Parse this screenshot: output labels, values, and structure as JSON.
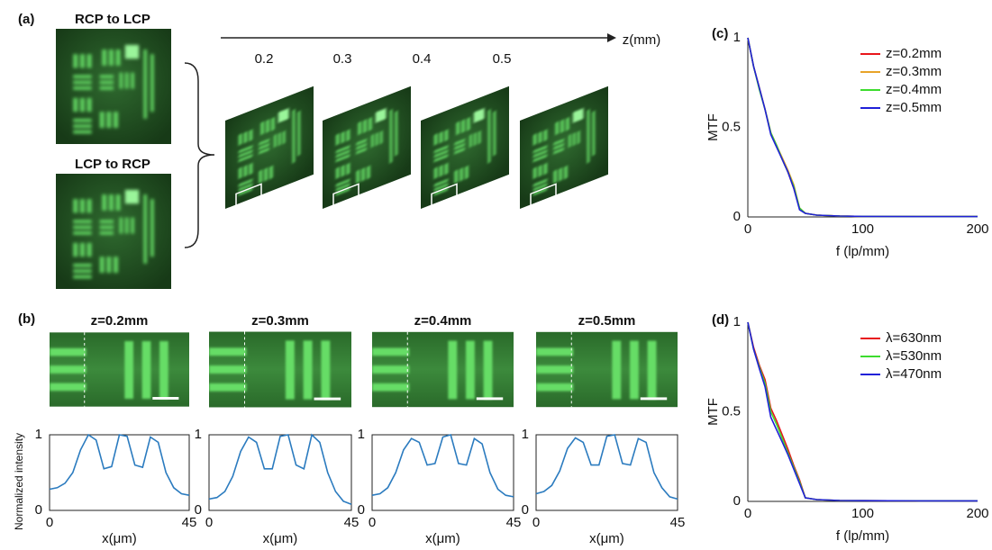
{
  "panel_labels": [
    "(a)",
    "(b)",
    "(c)",
    "(d)"
  ],
  "panel_a": {
    "input_labels": [
      "RCP to LCP",
      "LCP to RCP"
    ],
    "z_axis_label": "z(mm)",
    "z_positions": [
      0.2,
      0.3,
      0.4,
      0.5
    ]
  },
  "chart_data": [
    {
      "type": "line",
      "title": "z=0.2mm",
      "ylabel": "Normalized intensity",
      "xlabel": "x(μm)",
      "x": [
        0,
        2.5,
        5,
        7.5,
        10,
        12.5,
        15,
        17.5,
        20,
        22.5,
        25,
        27.5,
        30,
        32.5,
        35,
        37.5,
        40,
        42.5,
        45
      ],
      "values": [
        0.28,
        0.3,
        0.36,
        0.5,
        0.8,
        1.0,
        0.93,
        0.55,
        0.58,
        1.0,
        0.98,
        0.6,
        0.57,
        0.97,
        0.9,
        0.5,
        0.3,
        0.22,
        0.2
      ],
      "color": "#2b7bbf",
      "xlim": [
        0,
        45
      ],
      "ylim": [
        0,
        1
      ],
      "xticks": [
        0,
        45
      ],
      "yticks": [
        0,
        1
      ]
    },
    {
      "type": "line",
      "title": "z=0.3mm",
      "xlabel": "x(μm)",
      "x": [
        0,
        2.5,
        5,
        7.5,
        10,
        12.5,
        15,
        17.5,
        20,
        22.5,
        25,
        27.5,
        30,
        32.5,
        35,
        37.5,
        40,
        42.5,
        45
      ],
      "values": [
        0.15,
        0.17,
        0.25,
        0.45,
        0.78,
        0.97,
        0.9,
        0.55,
        0.55,
        0.98,
        1.0,
        0.6,
        0.55,
        1.0,
        0.9,
        0.5,
        0.25,
        0.12,
        0.08
      ],
      "color": "#2b7bbf",
      "xlim": [
        0,
        45
      ],
      "ylim": [
        0,
        1
      ],
      "xticks": [
        0,
        45
      ],
      "yticks": [
        0,
        1
      ]
    },
    {
      "type": "line",
      "title": "z=0.4mm",
      "xlabel": "x(μm)",
      "x": [
        0,
        2.5,
        5,
        7.5,
        10,
        12.5,
        15,
        17.5,
        20,
        22.5,
        25,
        27.5,
        30,
        32.5,
        35,
        37.5,
        40,
        42.5,
        45
      ],
      "values": [
        0.2,
        0.22,
        0.3,
        0.5,
        0.8,
        0.95,
        0.9,
        0.6,
        0.62,
        0.97,
        1.0,
        0.62,
        0.6,
        0.95,
        0.88,
        0.5,
        0.28,
        0.2,
        0.18
      ],
      "color": "#2b7bbf",
      "xlim": [
        0,
        45
      ],
      "ylim": [
        0,
        1
      ],
      "xticks": [
        0,
        45
      ],
      "yticks": [
        0,
        1
      ]
    },
    {
      "type": "line",
      "title": "z=0.5mm",
      "xlabel": "x(μm)",
      "x": [
        0,
        2.5,
        5,
        7.5,
        10,
        12.5,
        15,
        17.5,
        20,
        22.5,
        25,
        27.5,
        30,
        32.5,
        35,
        37.5,
        40,
        42.5,
        45
      ],
      "values": [
        0.22,
        0.25,
        0.33,
        0.52,
        0.82,
        0.96,
        0.9,
        0.6,
        0.6,
        0.98,
        1.0,
        0.62,
        0.6,
        0.95,
        0.9,
        0.5,
        0.3,
        0.18,
        0.15
      ],
      "color": "#2b7bbf",
      "xlim": [
        0,
        45
      ],
      "ylim": [
        0,
        1
      ],
      "xticks": [
        0,
        45
      ],
      "yticks": [
        0,
        1
      ]
    },
    {
      "type": "line",
      "ylabel": "MTF",
      "xlabel": "f (lp/mm)",
      "x": [
        0,
        5,
        10,
        15,
        20,
        25,
        30,
        35,
        40,
        45,
        50,
        60,
        80,
        100,
        150,
        200
      ],
      "legend": "upper right",
      "series": [
        {
          "name": "z=0.2mm",
          "color": "#e8161b",
          "values": [
            1,
            0.84,
            0.72,
            0.6,
            0.47,
            0.4,
            0.32,
            0.25,
            0.16,
            0.05,
            0.02,
            0.01,
            0.005,
            0.003,
            0.002,
            0.002
          ]
        },
        {
          "name": "z=0.3mm",
          "color": "#e8a328",
          "values": [
            1,
            0.84,
            0.72,
            0.6,
            0.47,
            0.4,
            0.33,
            0.26,
            0.18,
            0.05,
            0.02,
            0.01,
            0.005,
            0.003,
            0.002,
            0.002
          ]
        },
        {
          "name": "z=0.4mm",
          "color": "#3ddc2e",
          "values": [
            1,
            0.84,
            0.71,
            0.6,
            0.47,
            0.4,
            0.32,
            0.25,
            0.17,
            0.05,
            0.02,
            0.01,
            0.005,
            0.003,
            0.002,
            0.002
          ]
        },
        {
          "name": "z=0.5mm",
          "color": "#2020d8",
          "values": [
            1,
            0.84,
            0.72,
            0.6,
            0.46,
            0.39,
            0.32,
            0.25,
            0.16,
            0.04,
            0.02,
            0.01,
            0.005,
            0.003,
            0.002,
            0.002
          ]
        }
      ],
      "xlim": [
        0,
        200
      ],
      "ylim": [
        0,
        1
      ],
      "xticks": [
        0,
        100,
        200
      ],
      "yticks": [
        0,
        0.5,
        1
      ]
    },
    {
      "type": "line",
      "ylabel": "MTF",
      "xlabel": "f (lp/mm)",
      "x": [
        0,
        5,
        10,
        15,
        20,
        25,
        30,
        35,
        40,
        45,
        50,
        60,
        80,
        100,
        150,
        200
      ],
      "legend": "upper right",
      "series": [
        {
          "name": "λ=630nm",
          "color": "#e8161b",
          "values": [
            1,
            0.86,
            0.76,
            0.68,
            0.52,
            0.45,
            0.37,
            0.29,
            0.2,
            0.12,
            0.02,
            0.01,
            0.005,
            0.004,
            0.003,
            0.003
          ]
        },
        {
          "name": "λ=530nm",
          "color": "#3ddc2e",
          "values": [
            1,
            0.85,
            0.75,
            0.66,
            0.5,
            0.43,
            0.35,
            0.27,
            0.19,
            0.11,
            0.02,
            0.01,
            0.005,
            0.004,
            0.003,
            0.003
          ]
        },
        {
          "name": "λ=470nm",
          "color": "#2020d8",
          "values": [
            1,
            0.85,
            0.74,
            0.64,
            0.47,
            0.4,
            0.33,
            0.26,
            0.18,
            0.1,
            0.02,
            0.01,
            0.005,
            0.004,
            0.003,
            0.003
          ]
        }
      ],
      "xlim": [
        0,
        200
      ],
      "ylim": [
        0,
        1
      ],
      "xticks": [
        0,
        100,
        200
      ],
      "yticks": [
        0,
        0.5,
        1
      ]
    }
  ]
}
